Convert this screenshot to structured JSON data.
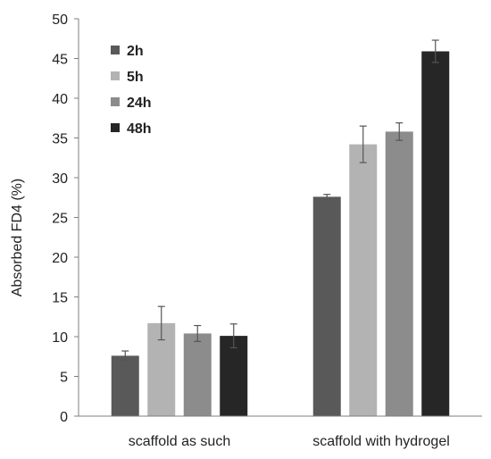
{
  "chart_data": {
    "type": "bar",
    "title": "",
    "xlabel": "",
    "ylabel": "Absorbed FD4 (%)",
    "categories": [
      "scaffold as such",
      "scaffold with hydrogel"
    ],
    "series": [
      {
        "name": "2h",
        "color": "#595959",
        "values": [
          7.6,
          27.6
        ],
        "errors": [
          0.6,
          0.3
        ]
      },
      {
        "name": "5h",
        "color": "#b3b3b3",
        "values": [
          11.7,
          34.2
        ],
        "errors": [
          2.1,
          2.3
        ]
      },
      {
        "name": "24h",
        "color": "#8c8c8c",
        "values": [
          10.4,
          35.8
        ],
        "errors": [
          1.0,
          1.1
        ]
      },
      {
        "name": "48h",
        "color": "#262626",
        "values": [
          10.1,
          45.9
        ],
        "errors": [
          1.5,
          1.4
        ]
      }
    ],
    "ylim": [
      0,
      50
    ],
    "yticks": [
      0,
      5,
      10,
      15,
      20,
      25,
      30,
      35,
      40,
      45,
      50
    ],
    "grid": false,
    "legend_position": "top-left"
  }
}
